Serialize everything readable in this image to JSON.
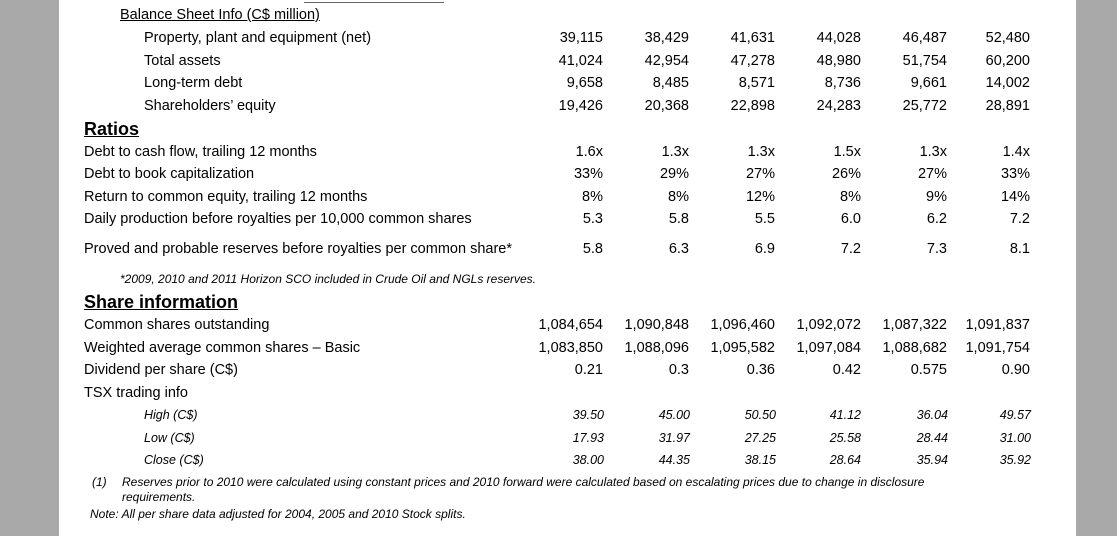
{
  "balance_sheet": {
    "title": "Balance Sheet Info (C$ million)",
    "rows": [
      {
        "label": "Property, plant and equipment (net)",
        "values": [
          "39,115",
          "38,429",
          "41,631",
          "44,028",
          "46,487",
          "52,480"
        ]
      },
      {
        "label": "Total assets",
        "values": [
          "41,024",
          "42,954",
          "47,278",
          "48,980",
          "51,754",
          "60,200"
        ]
      },
      {
        "label": "Long-term debt",
        "values": [
          "9,658",
          "8,485",
          "8,571",
          "8,736",
          "9,661",
          "14,002"
        ]
      },
      {
        "label": "Shareholders’ equity",
        "values": [
          "19,426",
          "20,368",
          "22,898",
          "24,283",
          "25,772",
          "28,891"
        ]
      }
    ]
  },
  "ratios": {
    "heading": "Ratios",
    "rows": [
      {
        "label": "Debt to cash flow, trailing 12 months",
        "values": [
          "1.6x",
          "1.3x",
          "1.3x",
          "1.5x",
          "1.3x",
          "1.4x"
        ]
      },
      {
        "label": "Debt to book capitalization",
        "values": [
          "33%",
          "29%",
          "27%",
          "26%",
          "27%",
          "33%"
        ]
      },
      {
        "label": "Return to common equity, trailing 12 months",
        "values": [
          "8%",
          "8%",
          "12%",
          "8%",
          "9%",
          "14%"
        ]
      },
      {
        "label": "Daily production before royalties per 10,000 common shares",
        "values": [
          "5.3",
          "5.8",
          "5.5",
          "6.0",
          "6.2",
          "7.2"
        ]
      },
      {
        "label": "Proved and probable reserves before royalties per common share*",
        "values": [
          "5.8",
          "6.3",
          "6.9",
          "7.2",
          "7.3",
          "8.1"
        ]
      }
    ],
    "note": "*2009, 2010 and 2011 Horizon SCO included in Crude Oil and NGLs reserves."
  },
  "share_info": {
    "heading": "Share information",
    "rows": [
      {
        "label": "Common shares outstanding",
        "values": [
          "1,084,654",
          "1,090,848",
          "1,096,460",
          "1,092,072",
          "1,087,322",
          "1,091,837"
        ]
      },
      {
        "label": "Weighted average common shares – Basic",
        "values": [
          "1,083,850",
          "1,088,096",
          "1,095,582",
          "1,097,084",
          "1,088,682",
          "1,091,754"
        ]
      },
      {
        "label": "Dividend per share (C$)",
        "values": [
          "0.21",
          "0.3",
          "0.36",
          "0.42",
          "0.575",
          "0.90"
        ]
      }
    ],
    "tsx_label": "TSX trading info",
    "tsx_rows": [
      {
        "label": "High (C$)",
        "values": [
          "39.50",
          "45.00",
          "50.50",
          "41.12",
          "36.04",
          "49.57"
        ]
      },
      {
        "label": "Low (C$)",
        "values": [
          "17.93",
          "31.97",
          "27.25",
          "25.58",
          "28.44",
          "31.00"
        ]
      },
      {
        "label": "Close (C$)",
        "values": [
          "38.00",
          "44.35",
          "38.15",
          "28.64",
          "35.94",
          "35.92"
        ]
      }
    ]
  },
  "footnotes": {
    "f1_marker": "(1)",
    "f1_line1": "Reserves prior to 2010 were calculated using constant prices and 2010 forward were calculated based on escalating prices due to change in disclosure",
    "f1_line2": "requirements.",
    "note": "Note: All per share data adjusted for 2004, 2005 and 2010 Stock splits."
  }
}
